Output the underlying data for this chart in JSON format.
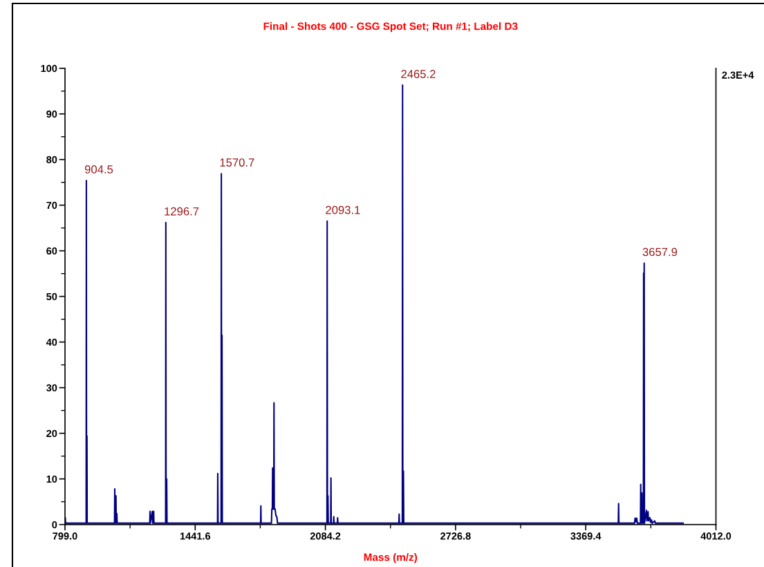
{
  "chart_data": {
    "type": "line",
    "title": "Final - Shots 400 - GSG Spot Set; Run #1; Label D3",
    "xlabel": "Mass (m/z)",
    "xlim": [
      799.0,
      4012.0
    ],
    "xticks": [
      {
        "value": 799.0,
        "label": "799.0"
      },
      {
        "value": 1120.3,
        "label": null
      },
      1441.6,
      {
        "value": 1762.9,
        "label": null
      },
      2084.2,
      {
        "value": 2405.5,
        "label": null
      },
      2726.8,
      {
        "value": 3048.1,
        "label": null
      },
      3369.4,
      {
        "value": 3690.7,
        "label": null
      },
      {
        "value": 4012.0,
        "label": "4012.0"
      }
    ],
    "ylim": [
      0,
      100
    ],
    "yticks": [
      0,
      {
        "value": 5,
        "label": null
      },
      10,
      {
        "value": 15,
        "label": null
      },
      20,
      {
        "value": 25,
        "label": null
      },
      30,
      {
        "value": 35,
        "label": null
      },
      40,
      {
        "value": 45,
        "label": null
      },
      50,
      {
        "value": 55,
        "label": null
      },
      60,
      {
        "value": 65,
        "label": null
      },
      70,
      {
        "value": 75,
        "label": null
      },
      80,
      {
        "value": 85,
        "label": null
      },
      90,
      {
        "value": 95,
        "label": null
      },
      100
    ],
    "series": [
      {
        "color": "#000080",
        "x": [
          799,
          800.5,
          802,
          903.5,
          904.5,
          905.5,
          907.5,
          908.5,
          1043.5,
          1044.7,
          1046,
          1050.5,
          1052,
          1055,
          1056.5,
          1217.5,
          1218.7,
          1220,
          1230,
          1231.5,
          1236.8,
          1238,
          1295.7,
          1296.7,
          1298,
          1301,
          1302.5,
          1552,
          1553,
          1554.5,
          1569.5,
          1570.7,
          1572,
          1574,
          1575.5,
          1764.5,
          1765.8,
          1767,
          1818,
          1820,
          1822.5,
          1823.8,
          1825,
          1829.5,
          1830.6,
          1832,
          1836,
          1840,
          1845,
          1848,
          2092,
          2093.1,
          2094.5,
          2096.9,
          2098.5,
          2110.5,
          2111.8,
          2113,
          2124.5,
          2125.5,
          2127,
          2143.5,
          2144.6,
          2146,
          2447,
          2448.3,
          2449.5,
          2464,
          2465.2,
          2466.5,
          2469.5,
          2471,
          3530,
          3531.5,
          3533,
          3610,
          3613,
          3617,
          3621,
          3624,
          3639.5,
          3640.7,
          3642,
          3646.2,
          3647.5,
          3650,
          3653.8,
          3655,
          3656.3,
          3657.9,
          3659.2,
          3669,
          3671,
          3676.8,
          3679,
          3686,
          3689,
          3694,
          3697,
          3710,
          3713,
          3850
        ],
        "values": [
          0.3,
          1.5,
          0.3,
          0.3,
          75.4,
          0.3,
          19.4,
          0.3,
          0.3,
          7.8,
          0.3,
          6.3,
          0.3,
          2.4,
          0.3,
          0.3,
          2.9,
          0.3,
          2.9,
          0.3,
          2.9,
          0.3,
          0.3,
          66.2,
          0.3,
          10.0,
          0.3,
          0.3,
          11.2,
          0.3,
          0.3,
          76.9,
          0.3,
          41.5,
          0.3,
          0.3,
          4.1,
          0.3,
          0.3,
          3.4,
          3.4,
          12.4,
          3.4,
          3.4,
          26.7,
          3.4,
          3.4,
          2.0,
          1.6,
          0.3,
          0.3,
          66.5,
          0.3,
          6.3,
          0.3,
          0.3,
          10.2,
          0.3,
          0.3,
          1.7,
          0.3,
          0.3,
          1.5,
          0.3,
          0.3,
          2.3,
          0.3,
          0.3,
          96.3,
          0.3,
          11.7,
          0.3,
          0.3,
          4.6,
          0.3,
          0.3,
          1.4,
          0.6,
          1.4,
          0.3,
          0.3,
          8.8,
          0.3,
          6.9,
          0.3,
          1.4,
          0.3,
          55.1,
          0.3,
          57.3,
          0.3,
          3.1,
          0.8,
          2.8,
          0.8,
          1.5,
          0.5,
          1.0,
          0.3,
          0.8,
          0.3,
          0.3
        ]
      }
    ],
    "annotations": [
      {
        "text": "904.5",
        "x": 904.5,
        "y": 75.4
      },
      {
        "text": "1296.7",
        "x": 1296.7,
        "y": 66.2
      },
      {
        "text": "1570.7",
        "x": 1570.7,
        "y": 76.9
      },
      {
        "text": "2093.1",
        "x": 2093.1,
        "y": 66.5
      },
      {
        "text": "2465.2",
        "x": 2465.2,
        "y": 96.3
      },
      {
        "text": "3657.9",
        "x": 3657.9,
        "y": 57.3
      },
      "2.3E+4"
    ]
  }
}
